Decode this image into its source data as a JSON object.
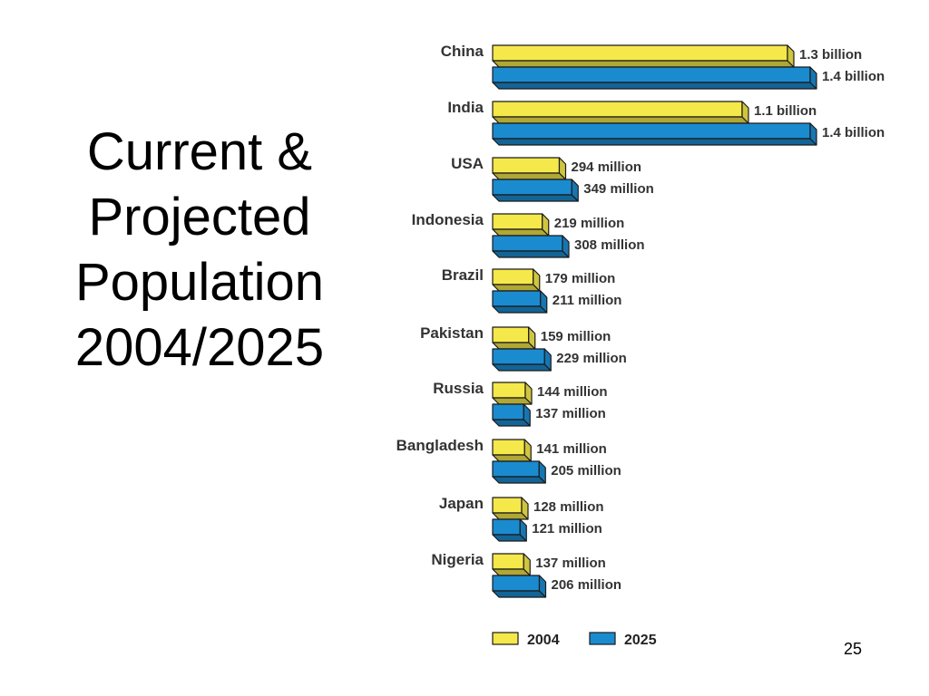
{
  "slide": {
    "title_lines": [
      "Current &",
      "Projected",
      "Population",
      "2004/2025"
    ],
    "page_number": "25"
  },
  "colors": {
    "y2004": "#f5e84a",
    "y2025": "#1b8bd0",
    "outline": "#1a1a1a"
  },
  "chart_data": {
    "type": "bar",
    "orientation": "horizontal",
    "unit": "millions",
    "categories": [
      "China",
      "India",
      "USA",
      "Indonesia",
      "Brazil",
      "Pakistan",
      "Russia",
      "Bangladesh",
      "Japan",
      "Nigeria"
    ],
    "series": [
      {
        "name": "2004",
        "values": [
          1300,
          1100,
          294,
          219,
          179,
          159,
          144,
          141,
          128,
          137
        ],
        "labels": [
          "1.3 billion",
          "1.1 billion",
          "294 million",
          "219 million",
          "179 million",
          "159 million",
          "144 million",
          "141 million",
          "128 million",
          "137 million"
        ]
      },
      {
        "name": "2025",
        "values": [
          1400,
          1400,
          349,
          308,
          211,
          229,
          137,
          205,
          121,
          206
        ],
        "labels": [
          "1.4 billion",
          "1.4 billion",
          "349 million",
          "308 million",
          "211 million",
          "229 million",
          "137 million",
          "205 million",
          "121 million",
          "206 million"
        ]
      }
    ],
    "legend": {
      "placement": "bottom",
      "entries": [
        "2004",
        "2025"
      ]
    },
    "grid": false
  }
}
